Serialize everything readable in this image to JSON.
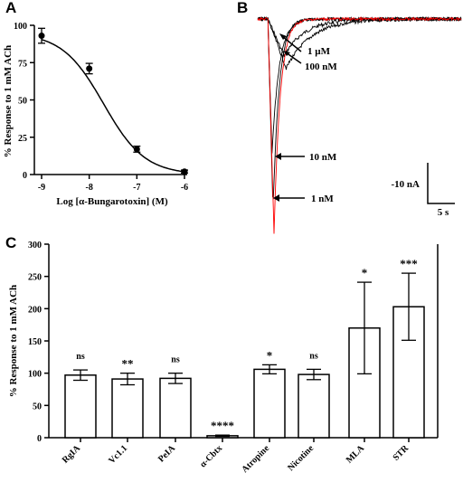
{
  "panels": {
    "a": "A",
    "b": "B",
    "c": "C"
  },
  "chart_data": [
    {
      "type": "scatter",
      "xlabel": "Log [α-Bungarotoxin] (M)",
      "ylabel": "% Response to 1 mM ACh",
      "xlim": [
        -9,
        -6
      ],
      "ylim": [
        0,
        100
      ],
      "x_ticks": [
        "-9",
        "-8",
        "-7",
        "-6"
      ],
      "y_ticks": [
        "0",
        "25",
        "50",
        "75",
        "100"
      ],
      "points": [
        {
          "x": -9,
          "y": 93,
          "err": 5
        },
        {
          "x": -8,
          "y": 71,
          "err": 3.5
        },
        {
          "x": -7,
          "y": 17,
          "err": 2
        },
        {
          "x": -6,
          "y": 2,
          "err": 1
        }
      ],
      "fit_curve": {
        "top": 95,
        "log_ic50": -7.7,
        "hill": 1.0
      }
    },
    {
      "type": "line",
      "annotations": [
        "1 µM",
        "100 nM",
        "10 nM",
        "1 nM"
      ],
      "scale_bar": {
        "y_label": "-10 nA",
        "x_label": "5 s"
      },
      "series": [
        {
          "color": "#000000",
          "peak_nA": 6
        },
        {
          "color": "#000000",
          "peak_nA": 8
        },
        {
          "color": "#000000",
          "peak_nA": 22
        },
        {
          "color": "#000000",
          "peak_nA": 31
        },
        {
          "color": "#ff0000",
          "peak_nA": 35
        }
      ]
    },
    {
      "type": "bar",
      "ylabel": "% Response to 1 mM ACh",
      "ylim": [
        0,
        300
      ],
      "y_ticks": [
        "0",
        "50",
        "100",
        "150",
        "200",
        "250",
        "300"
      ],
      "categories": [
        "RgIA",
        "Vc1.1",
        "PeIA",
        "α-Cbtx",
        "Atropine",
        "Nicotine",
        "MLA",
        "STR"
      ],
      "values": [
        97,
        91,
        92,
        3,
        106,
        98,
        170,
        203
      ],
      "errors": [
        8,
        9,
        8,
        1,
        7,
        8,
        71,
        52
      ],
      "significance": [
        "ns",
        "**",
        "ns",
        "****",
        "*",
        "ns",
        "*",
        "***"
      ]
    }
  ]
}
